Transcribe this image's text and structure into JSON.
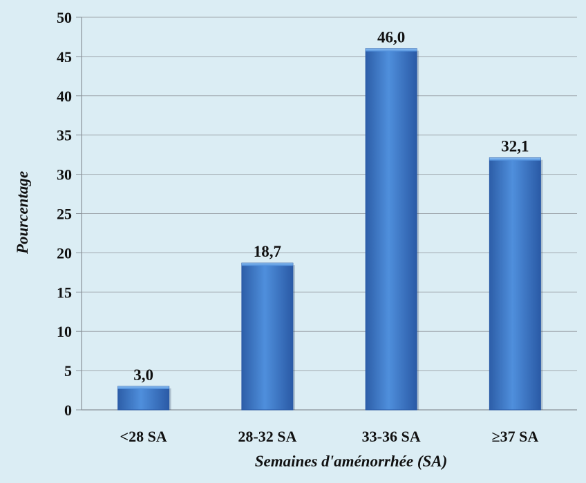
{
  "chart_data": {
    "type": "bar",
    "categories": [
      "<28 SA",
      "28-32 SA",
      "33-36 SA",
      "≥37 SA"
    ],
    "values": [
      3.0,
      18.7,
      46.0,
      32.1
    ],
    "data_labels": [
      "3,0",
      "18,7",
      "46,0",
      "32,1"
    ],
    "xlabel": "Semaines d'aménorrhée (SA)",
    "ylabel": "Pourcentage",
    "ylim": [
      0,
      50
    ],
    "yticks": [
      0,
      5,
      10,
      15,
      20,
      25,
      30,
      35,
      40,
      45,
      50
    ],
    "grid": true,
    "legend": "none",
    "colors": {
      "background": "#dbedf4",
      "bar_light": "#4f8fdc",
      "bar_dark": "#2a5aa6",
      "grid": "#9fa7ad"
    }
  }
}
